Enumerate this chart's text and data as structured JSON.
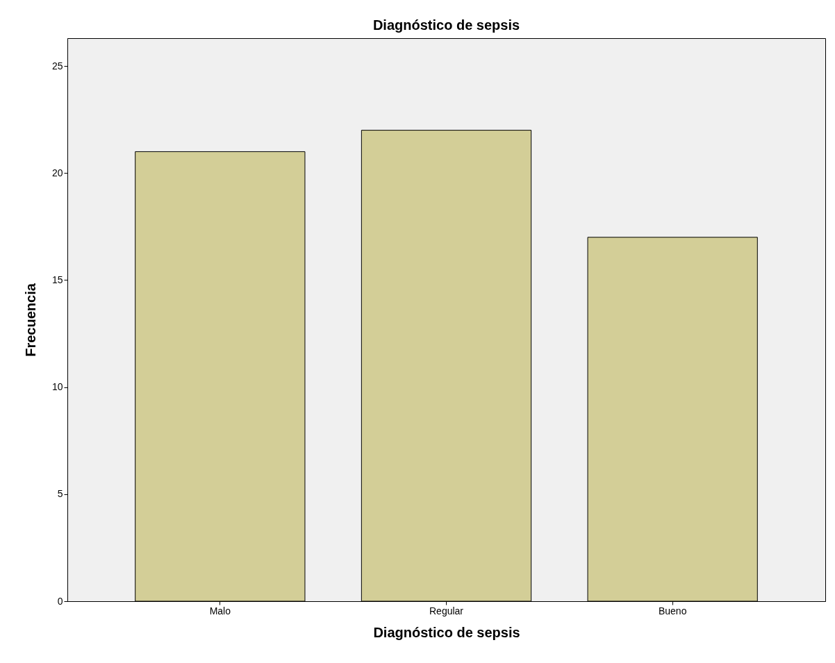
{
  "chart_data": {
    "type": "bar",
    "title": "Diagnóstico de sepsis",
    "xlabel": "Diagnóstico de sepsis",
    "ylabel": "Frecuencia",
    "categories": [
      "Malo",
      "Regular",
      "Bueno"
    ],
    "values": [
      21,
      22,
      17
    ],
    "color": "#d3ce97",
    "ylim": [
      0,
      26.3
    ],
    "yticks": [
      0,
      5,
      10,
      15,
      20,
      25
    ]
  }
}
